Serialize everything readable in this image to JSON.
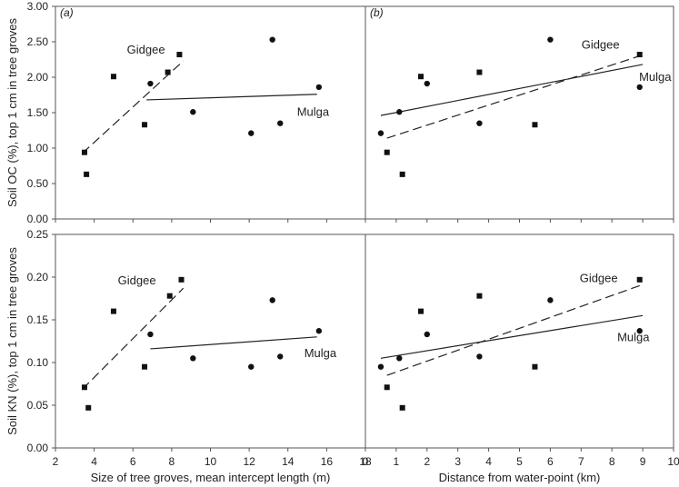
{
  "figure": {
    "shared_ylabels": [
      "Soil OC (%), top 1 cm in tree groves",
      "Soil KN (%), top 1 cm in tree groves"
    ],
    "shared_xlabels": [
      "Size of tree groves, mean intercept length (m)",
      "Distance from water-point (km)"
    ]
  },
  "chart_data": [
    {
      "type": "scatter",
      "panel_label": "(a)",
      "xlabel": "",
      "ylabel": "Soil OC (%), top 1 cm in tree groves",
      "xlim": [
        2,
        18
      ],
      "ylim": [
        0,
        3
      ],
      "xticks": [
        2,
        4,
        6,
        8,
        10,
        12,
        14,
        16,
        18
      ],
      "yticks": [
        "0.00",
        "0.50",
        "1.00",
        "1.50",
        "2.00",
        "2.50",
        "3.00"
      ],
      "show_x_tick_labels": false,
      "series": [
        {
          "name": "Gidgee",
          "marker": "square",
          "line": "dashed",
          "points": [
            [
              3.5,
              0.94
            ],
            [
              3.6,
              0.63
            ],
            [
              5.0,
              2.01
            ],
            [
              6.6,
              1.33
            ],
            [
              7.8,
              2.07
            ],
            [
              8.4,
              2.32
            ]
          ],
          "trend": [
            [
              3.4,
              0.93
            ],
            [
              8.6,
              2.23
            ]
          ]
        },
        {
          "name": "Mulga",
          "marker": "circle",
          "line": "solid",
          "points": [
            [
              6.9,
              1.91
            ],
            [
              9.1,
              1.51
            ],
            [
              12.1,
              1.21
            ],
            [
              13.2,
              2.53
            ],
            [
              13.6,
              1.35
            ],
            [
              15.6,
              1.86
            ]
          ],
          "trend": [
            [
              6.7,
              1.68
            ],
            [
              15.5,
              1.76
            ]
          ]
        }
      ]
    },
    {
      "type": "scatter",
      "panel_label": "(b)",
      "xlabel": "",
      "ylabel": "",
      "xlim": [
        0,
        10
      ],
      "ylim": [
        0,
        3
      ],
      "xticks": [
        0,
        1,
        2,
        3,
        4,
        5,
        6,
        7,
        8,
        9,
        10
      ],
      "show_x_tick_labels": false,
      "show_y_tick_labels": false,
      "series": [
        {
          "name": "Gidgee",
          "marker": "square",
          "line": "dashed",
          "points": [
            [
              0.7,
              0.94
            ],
            [
              1.2,
              0.63
            ],
            [
              1.8,
              2.01
            ],
            [
              3.7,
              2.07
            ],
            [
              5.5,
              1.33
            ],
            [
              8.9,
              2.32
            ]
          ],
          "trend": [
            [
              0.7,
              1.14
            ],
            [
              8.9,
              2.3
            ]
          ]
        },
        {
          "name": "Mulga",
          "marker": "circle",
          "line": "solid",
          "points": [
            [
              0.5,
              1.21
            ],
            [
              1.1,
              1.51
            ],
            [
              2.0,
              1.91
            ],
            [
              3.7,
              1.35
            ],
            [
              6.0,
              2.53
            ],
            [
              8.9,
              1.86
            ]
          ],
          "trend": [
            [
              0.5,
              1.46
            ],
            [
              9.0,
              2.18
            ]
          ]
        }
      ]
    },
    {
      "type": "scatter",
      "panel_label": "",
      "xlabel": "Size of tree groves, mean intercept length (m)",
      "ylabel": "Soil KN (%), top 1 cm in tree groves",
      "xlim": [
        2,
        18
      ],
      "ylim": [
        0,
        0.25
      ],
      "xticks": [
        2,
        4,
        6,
        8,
        10,
        12,
        14,
        16,
        18
      ],
      "yticks": [
        "0.00",
        "0.05",
        "0.10",
        "0.15",
        "0.20",
        "0.25"
      ],
      "show_x_tick_labels": true,
      "series": [
        {
          "name": "Gidgee",
          "marker": "square",
          "line": "dashed",
          "points": [
            [
              3.5,
              0.071
            ],
            [
              3.7,
              0.047
            ],
            [
              5.0,
              0.16
            ],
            [
              6.6,
              0.095
            ],
            [
              7.9,
              0.178
            ],
            [
              8.5,
              0.197
            ]
          ],
          "trend": [
            [
              3.4,
              0.069
            ],
            [
              8.6,
              0.187
            ]
          ]
        },
        {
          "name": "Mulga",
          "marker": "circle",
          "line": "solid",
          "points": [
            [
              6.9,
              0.133
            ],
            [
              9.1,
              0.105
            ],
            [
              12.1,
              0.095
            ],
            [
              13.2,
              0.173
            ],
            [
              13.6,
              0.107
            ],
            [
              15.6,
              0.137
            ]
          ],
          "trend": [
            [
              6.9,
              0.116
            ],
            [
              15.5,
              0.13
            ]
          ]
        }
      ]
    },
    {
      "type": "scatter",
      "panel_label": "",
      "xlabel": "Distance from water-point (km)",
      "ylabel": "",
      "xlim": [
        0,
        10
      ],
      "ylim": [
        0,
        0.25
      ],
      "xticks": [
        0,
        1,
        2,
        3,
        4,
        5,
        6,
        7,
        8,
        9,
        10
      ],
      "show_x_tick_labels": true,
      "show_y_tick_labels": false,
      "series": [
        {
          "name": "Gidgee",
          "marker": "square",
          "line": "dashed",
          "points": [
            [
              0.7,
              0.071
            ],
            [
              1.2,
              0.047
            ],
            [
              1.8,
              0.16
            ],
            [
              3.7,
              0.178
            ],
            [
              5.5,
              0.095
            ],
            [
              8.9,
              0.197
            ]
          ],
          "trend": [
            [
              0.7,
              0.085
            ],
            [
              8.9,
              0.19
            ]
          ]
        },
        {
          "name": "Mulga",
          "marker": "circle",
          "line": "solid",
          "points": [
            [
              0.5,
              0.095
            ],
            [
              1.1,
              0.105
            ],
            [
              2.0,
              0.133
            ],
            [
              3.7,
              0.107
            ],
            [
              6.0,
              0.173
            ],
            [
              8.9,
              0.137
            ]
          ],
          "trend": [
            [
              0.5,
              0.105
            ],
            [
              9.0,
              0.155
            ]
          ]
        }
      ]
    }
  ]
}
